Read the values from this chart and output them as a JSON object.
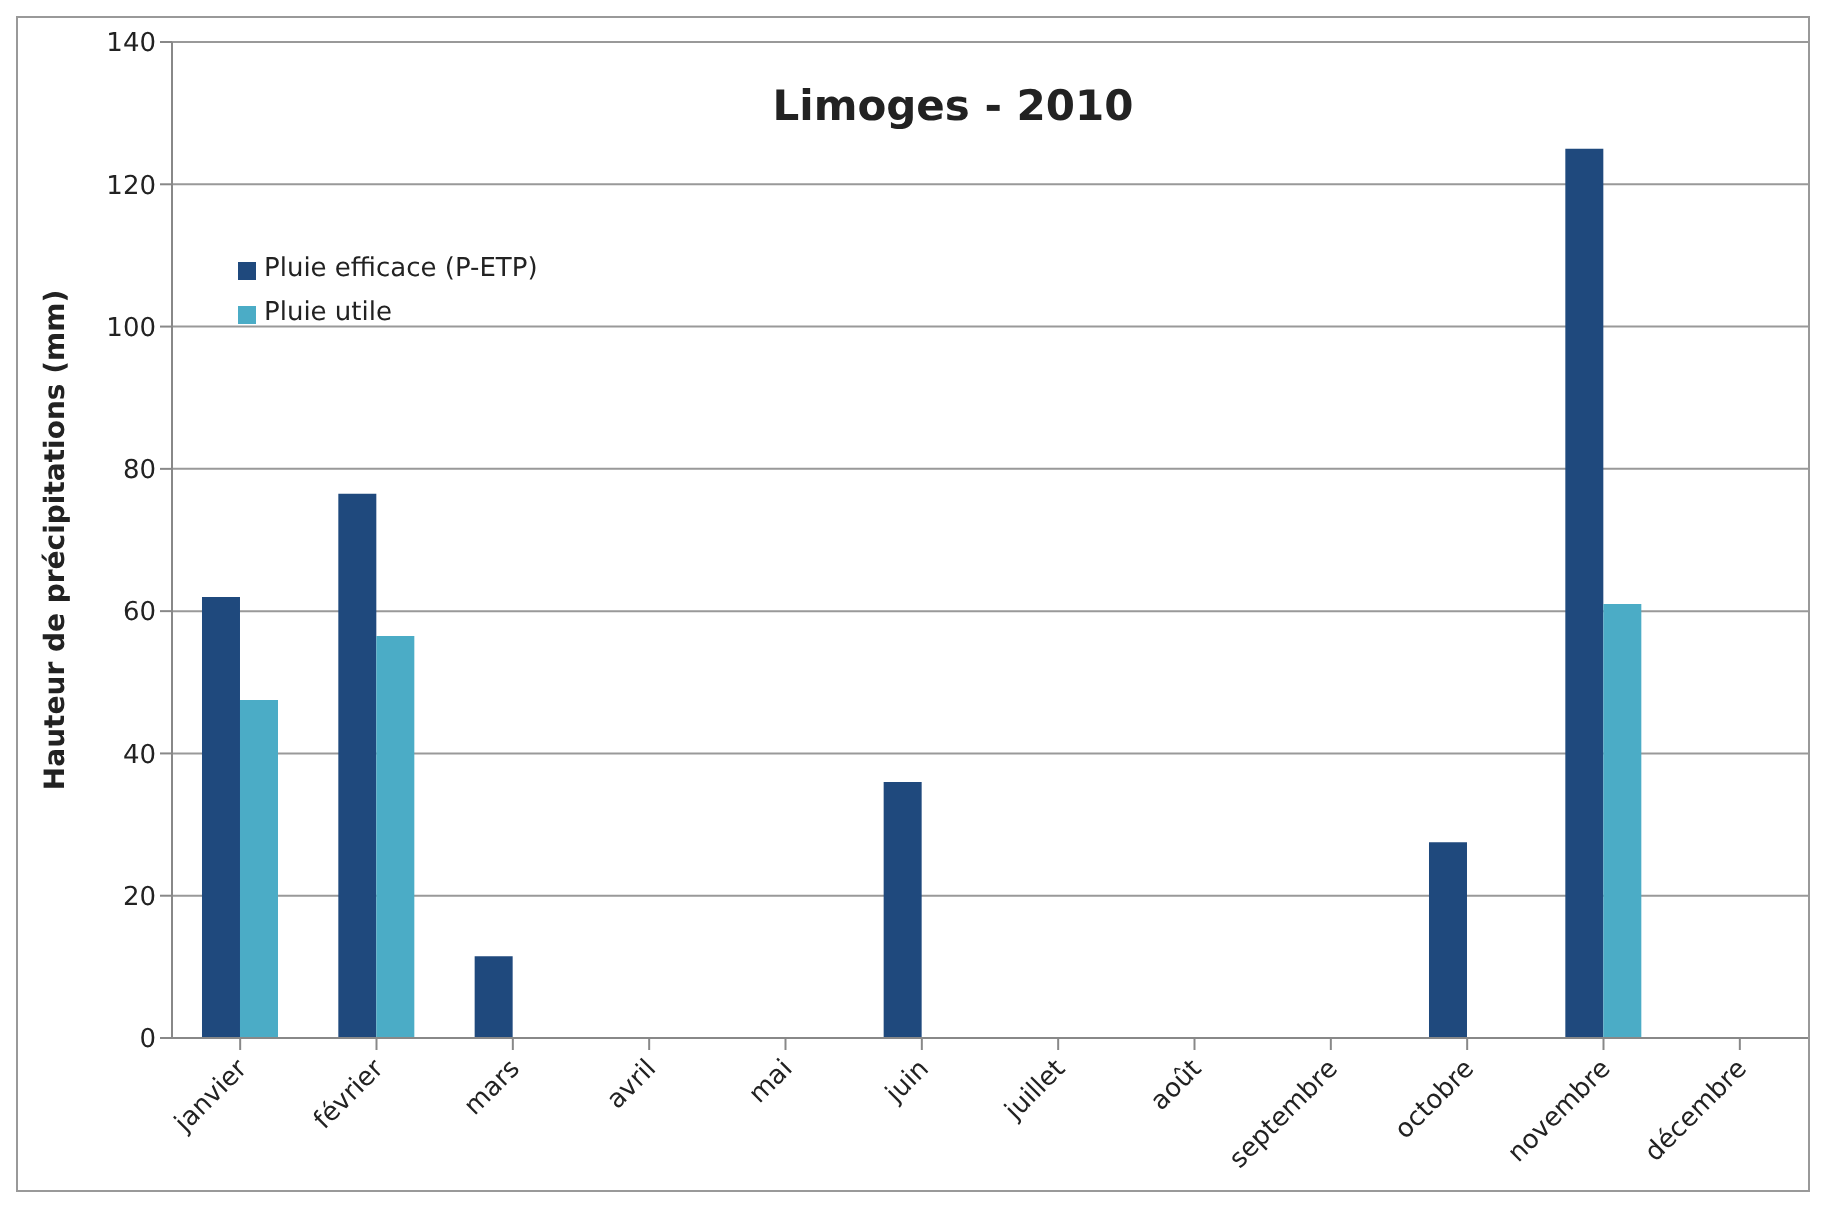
{
  "chart_data": {
    "type": "bar",
    "title": "Limoges - 2010",
    "ylabel": "Hauteur de précipitations  (mm)",
    "categories": [
      "janvier",
      "février",
      "mars",
      "avril",
      "mai",
      "juin",
      "juillet",
      "août",
      "septembre",
      "octobre",
      "novembre",
      "décembre"
    ],
    "series": [
      {
        "name": "Pluie efficace (P-ETP)",
        "color": "#1f497d",
        "values": [
          62,
          76.5,
          11.5,
          0,
          0,
          36,
          0,
          0,
          0,
          27.5,
          125,
          0
        ]
      },
      {
        "name": "Pluie utile",
        "color": "#4bacc6",
        "values": [
          47.5,
          56.5,
          0,
          0,
          0,
          0,
          0,
          0,
          0,
          0,
          61,
          0
        ]
      }
    ],
    "ylim": [
      0,
      140
    ],
    "yticks": [
      0,
      20,
      40,
      60,
      80,
      100,
      120,
      140
    ],
    "grid": "y",
    "legend": "top left"
  }
}
